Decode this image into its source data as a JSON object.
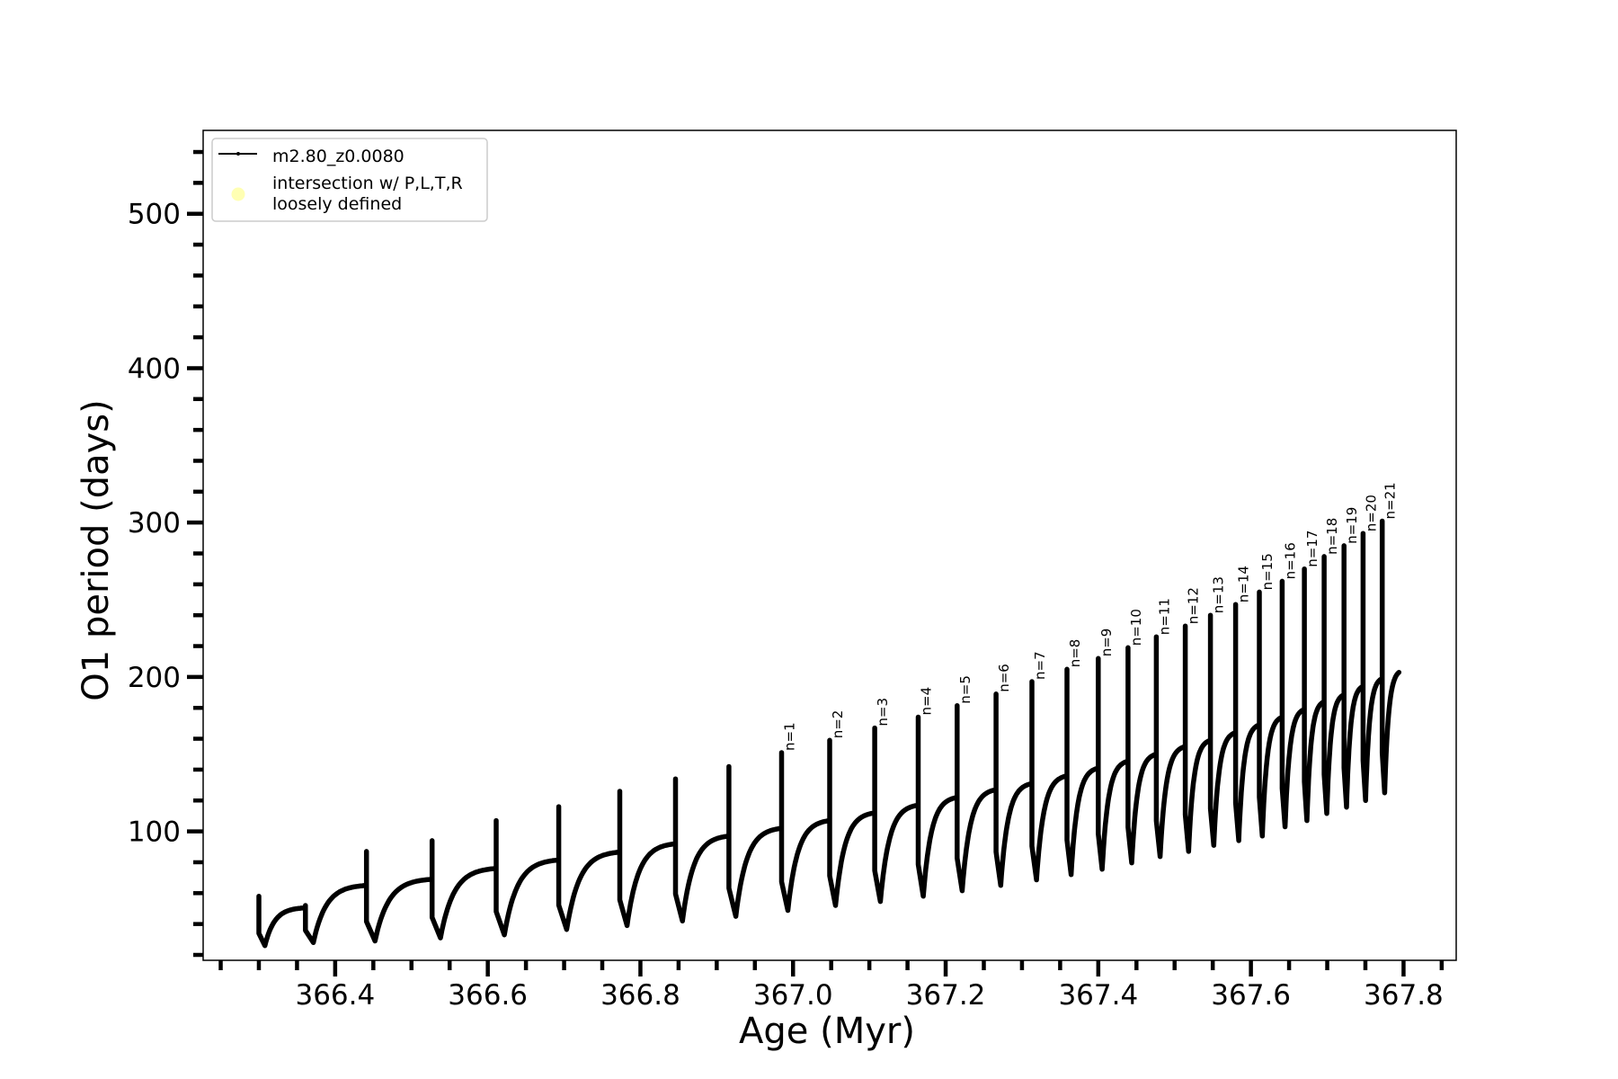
{
  "chart_data": {
    "type": "line",
    "xlabel": "Age (Myr)",
    "ylabel": "O1 period (days)",
    "xlim": [
      366.227,
      367.869
    ],
    "ylim": [
      16.5,
      554
    ],
    "x_major_ticks": [
      366.4,
      366.6,
      366.8,
      367.0,
      367.2,
      367.4,
      367.6,
      367.8
    ],
    "x_tick_labels": [
      "366.4",
      "366.6",
      "366.8",
      "367.0",
      "367.2",
      "367.4",
      "367.6",
      "367.8"
    ],
    "x_minor_step": 0.05,
    "y_major_ticks": [
      100,
      200,
      300,
      400,
      500
    ],
    "y_tick_labels": [
      "100",
      "200",
      "300",
      "400",
      "500"
    ],
    "y_minor_step": 20,
    "grid": false,
    "legend": {
      "placement": "upper-left",
      "entries": [
        {
          "label": "m2.80_z0.0080",
          "marker": "line-with-dot",
          "color": "#000000"
        },
        {
          "label_lines": [
            "intersection w/ P,L,T,R",
            "loosely defined"
          ],
          "marker": "circle",
          "color": "#ffffb3"
        }
      ]
    },
    "series": [
      {
        "name": "m2.80_z0.0080",
        "color": "#000000",
        "start": {
          "age": 366.3,
          "value": 48.8
        },
        "end": {
          "age": 367.794,
          "value": 203
        },
        "spikes": [
          {
            "age": 366.3,
            "before": 48.8,
            "peak": 58,
            "min": 26,
            "label": ""
          },
          {
            "age": 366.361,
            "before": 50.5,
            "peak": 52,
            "min": 28,
            "label": ""
          },
          {
            "age": 366.441,
            "before": 65,
            "peak": 87,
            "min": 29,
            "label": ""
          },
          {
            "age": 366.527,
            "before": 69,
            "peak": 94,
            "min": 31,
            "label": ""
          },
          {
            "age": 366.611,
            "before": 76,
            "peak": 107,
            "min": 33,
            "label": ""
          },
          {
            "age": 366.693,
            "before": 81.5,
            "peak": 116,
            "min": 36.5,
            "label": ""
          },
          {
            "age": 366.773,
            "before": 86.6,
            "peak": 126,
            "min": 39,
            "label": ""
          },
          {
            "age": 366.846,
            "before": 92,
            "peak": 134,
            "min": 42,
            "label": ""
          },
          {
            "age": 366.916,
            "before": 97,
            "peak": 142,
            "min": 45,
            "label": ""
          },
          {
            "age": 366.985,
            "before": 102,
            "peak": 151,
            "min": 48.8,
            "label": "n=1"
          },
          {
            "age": 367.048,
            "before": 107,
            "peak": 159,
            "min": 52,
            "label": "n=2"
          },
          {
            "age": 367.107,
            "before": 112,
            "peak": 167,
            "min": 54.6,
            "label": "n=3"
          },
          {
            "age": 367.164,
            "before": 117,
            "peak": 174,
            "min": 58,
            "label": "n=4"
          },
          {
            "age": 367.215,
            "before": 122,
            "peak": 181.5,
            "min": 61.6,
            "label": "n=5"
          },
          {
            "age": 367.266,
            "before": 127,
            "peak": 189,
            "min": 65,
            "label": "n=6"
          },
          {
            "age": 367.313,
            "before": 131,
            "peak": 197,
            "min": 68.6,
            "label": "n=7"
          },
          {
            "age": 367.359,
            "before": 136,
            "peak": 205,
            "min": 72,
            "label": "n=8"
          },
          {
            "age": 367.4,
            "before": 141,
            "peak": 212,
            "min": 75.5,
            "label": "n=9"
          },
          {
            "age": 367.439,
            "before": 145.5,
            "peak": 219,
            "min": 79.6,
            "label": "n=10"
          },
          {
            "age": 367.476,
            "before": 150,
            "peak": 226,
            "min": 83.7,
            "label": "n=11"
          },
          {
            "age": 367.514,
            "before": 155,
            "peak": 233,
            "min": 87,
            "label": "n=12"
          },
          {
            "age": 367.547,
            "before": 159,
            "peak": 240,
            "min": 91,
            "label": "n=13"
          },
          {
            "age": 367.58,
            "before": 164,
            "peak": 247,
            "min": 94,
            "label": "n=14"
          },
          {
            "age": 367.611,
            "before": 169,
            "peak": 255,
            "min": 97,
            "label": "n=15"
          },
          {
            "age": 367.641,
            "before": 174,
            "peak": 262,
            "min": 103,
            "label": "n=16"
          },
          {
            "age": 367.67,
            "before": 179,
            "peak": 270,
            "min": 107,
            "label": "n=17"
          },
          {
            "age": 367.696,
            "before": 184,
            "peak": 278,
            "min": 111.6,
            "label": "n=18"
          },
          {
            "age": 367.722,
            "before": 188.5,
            "peak": 285,
            "min": 115.7,
            "label": "n=19"
          },
          {
            "age": 367.747,
            "before": 194,
            "peak": 293,
            "min": 120,
            "label": "n=20"
          },
          {
            "age": 367.772,
            "before": 199,
            "peak": 301,
            "min": 125,
            "label": "n=21"
          }
        ]
      }
    ]
  }
}
